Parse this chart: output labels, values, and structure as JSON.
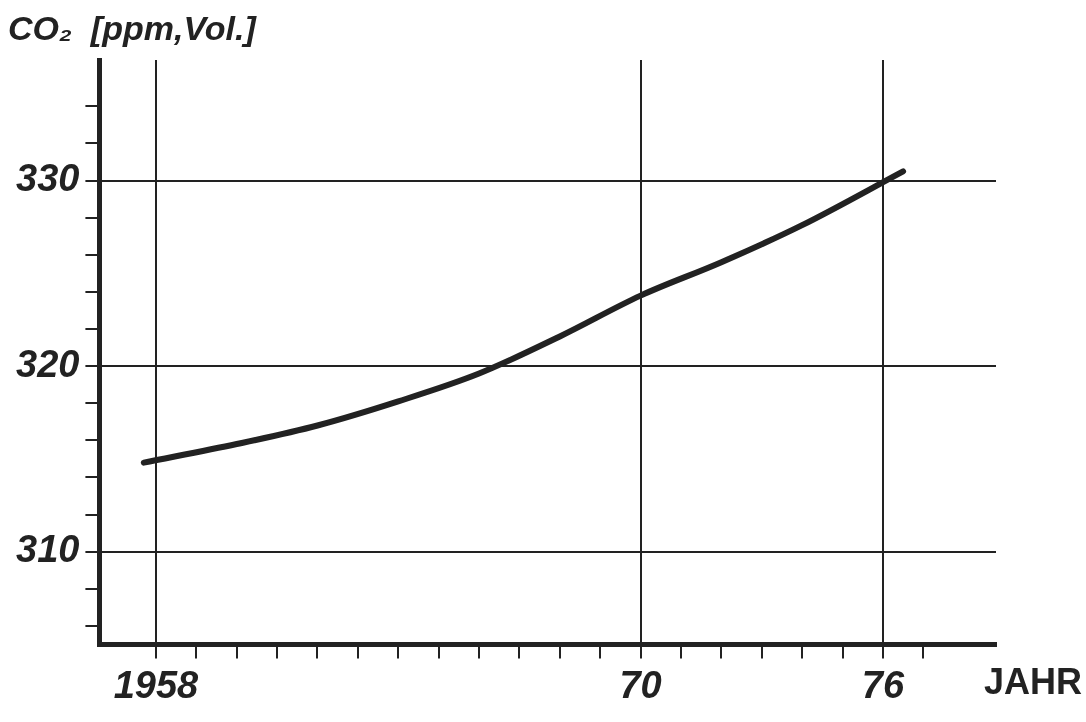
{
  "chart_data": {
    "type": "line",
    "ylabel": "CO₂  [ppm,Vol.]",
    "xlabel": "JAHR",
    "x": [
      1957.7,
      1960,
      1962,
      1964,
      1966,
      1968,
      1970,
      1972,
      1974,
      1976.5
    ],
    "series": [
      {
        "color": "#222222",
        "values": [
          314.8,
          315.8,
          316.8,
          318.1,
          319.6,
          321.6,
          323.8,
          325.6,
          327.6,
          330.5
        ]
      }
    ],
    "xlim": [
      1956.6,
      1978.8
    ],
    "xticks": [
      {
        "value": 1958,
        "label": "1958"
      },
      {
        "value": 1959,
        "label": null
      },
      {
        "value": 1960,
        "label": null
      },
      {
        "value": 1961,
        "label": null
      },
      {
        "value": 1962,
        "label": null
      },
      {
        "value": 1963,
        "label": null
      },
      {
        "value": 1964,
        "label": null
      },
      {
        "value": 1965,
        "label": null
      },
      {
        "value": 1966,
        "label": null
      },
      {
        "value": 1967,
        "label": null
      },
      {
        "value": 1968,
        "label": null
      },
      {
        "value": 1969,
        "label": null
      },
      {
        "value": 1970,
        "label": "70"
      },
      {
        "value": 1971,
        "label": null
      },
      {
        "value": 1972,
        "label": null
      },
      {
        "value": 1973,
        "label": null
      },
      {
        "value": 1974,
        "label": null
      },
      {
        "value": 1975,
        "label": null
      },
      {
        "value": 1976,
        "label": "76"
      },
      {
        "value": 1977,
        "label": null
      }
    ],
    "ylim": [
      305,
      336.5
    ],
    "yticks": [
      {
        "value": 306,
        "label": null
      },
      {
        "value": 308,
        "label": null
      },
      310,
      {
        "value": 312,
        "label": null
      },
      {
        "value": 314,
        "label": null
      },
      {
        "value": 316,
        "label": null
      },
      {
        "value": 318,
        "label": null
      },
      320,
      {
        "value": 322,
        "label": null
      },
      {
        "value": 324,
        "label": null
      },
      {
        "value": 326,
        "label": null
      },
      {
        "value": 328,
        "label": null
      },
      330,
      {
        "value": 332,
        "label": null
      },
      {
        "value": 334,
        "label": null
      }
    ],
    "grid": true,
    "marker": "none",
    "line_style": "solid",
    "legend": false
  }
}
